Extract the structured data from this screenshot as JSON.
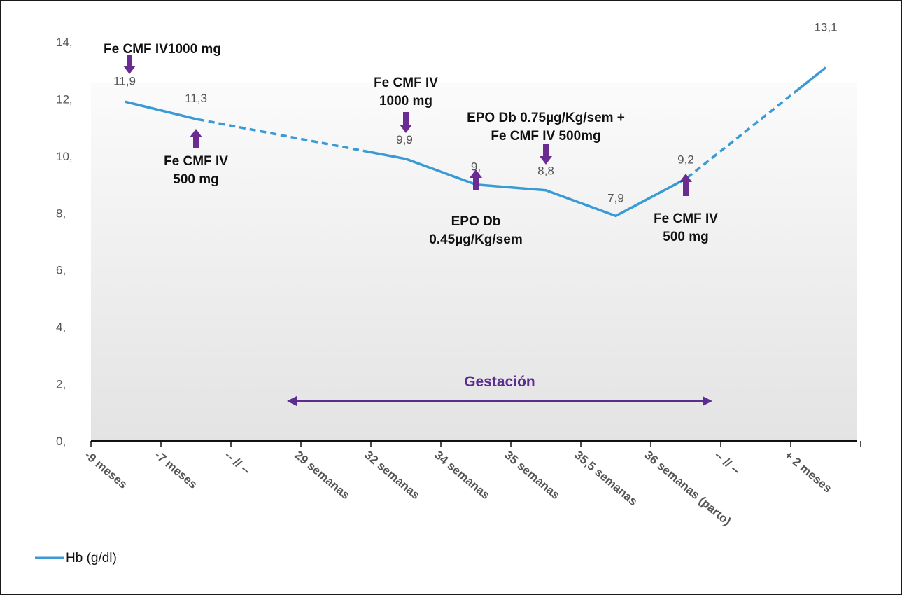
{
  "chart_data": {
    "type": "line",
    "ylim": [
      0,
      14
    ],
    "y_ticks": [
      "0,",
      "2,",
      "4,",
      "6,",
      "8,",
      "10,",
      "12,",
      "14,"
    ],
    "categories": [
      "-9 meses",
      "-7 meses",
      "-- // --",
      "29 semanas",
      "32 semanas",
      "34 semanas",
      "35 semanas",
      "35,5 semanas",
      "36 semanas (parto)",
      "-- // --",
      "+ 2 meses"
    ],
    "series": [
      {
        "name": "Hb (g/dl)",
        "color": "#3a9ad6",
        "points": [
          {
            "x": "-9 meses",
            "y": 11.9,
            "label": "11,9"
          },
          {
            "x": "-7 meses",
            "y": 11.3,
            "label": "11,3"
          },
          {
            "x": "32 semanas",
            "y": 9.9,
            "label": "9,9"
          },
          {
            "x": "34 semanas",
            "y": 9.0,
            "label": "9,"
          },
          {
            "x": "35 semanas",
            "y": 8.8,
            "label": "8,8"
          },
          {
            "x": "35,5 semanas",
            "y": 7.9,
            "label": "7,9"
          },
          {
            "x": "36 semanas (parto)",
            "y": 9.2,
            "label": "9,2"
          },
          {
            "x": "+ 2 meses",
            "y": 13.1,
            "label": "13,1"
          }
        ],
        "dashed_segments": [
          "-7 meses to 32 semanas",
          "36 semanas (parto) to + 2 meses"
        ]
      }
    ],
    "annotations": [
      {
        "lines": [
          "Fe CMF IV1000 mg"
        ],
        "at": "-9 meses",
        "arrow": "down"
      },
      {
        "lines": [
          "Fe CMF IV",
          "500 mg"
        ],
        "at": "-7 meses",
        "arrow": "up"
      },
      {
        "lines": [
          "Fe CMF IV",
          "1000 mg"
        ],
        "at": "32 semanas",
        "arrow": "down"
      },
      {
        "lines": [
          "EPO Db",
          "0.45µg/Kg/sem"
        ],
        "at": "34 semanas",
        "arrow": "up"
      },
      {
        "lines": [
          "EPO Db 0.75µg/Kg/sem +",
          "Fe CMF IV 500mg"
        ],
        "at": "35 semanas",
        "arrow": "down"
      },
      {
        "lines": [
          "Fe CMF IV",
          "500 mg"
        ],
        "at": "36 semanas (parto)",
        "arrow": "up"
      }
    ],
    "range_annotation": {
      "label": "Gestación",
      "from": "29 semanas",
      "to": "36 semanas (parto)",
      "color": "#5b2d91"
    },
    "arrow_color": "#6a2c91",
    "legend": {
      "label": "Hb (g/dl)",
      "position": "bottom-left"
    },
    "grid": false
  }
}
